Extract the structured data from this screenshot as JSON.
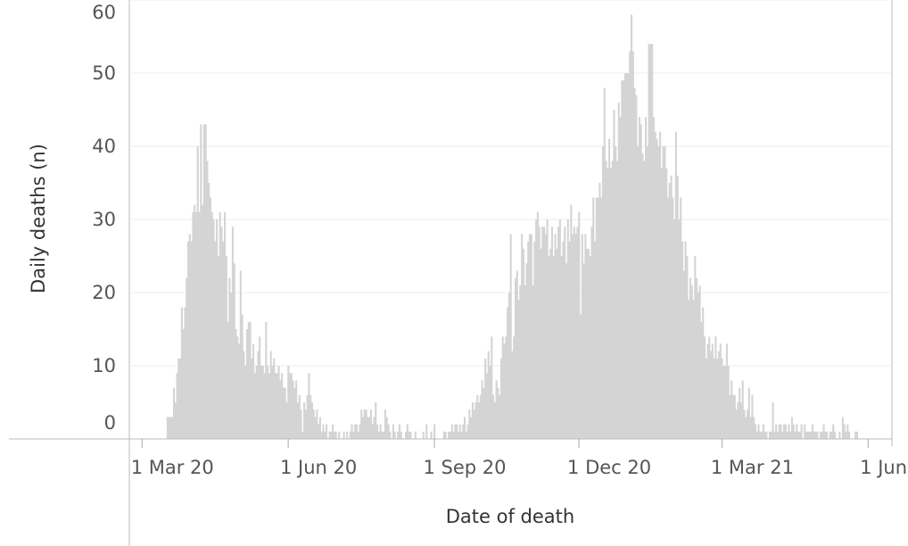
{
  "chart_data": {
    "type": "bar",
    "y_label": "Daily deaths (n)",
    "x_label": "Date of death",
    "color": "#d4d4d4",
    "grid": true,
    "ylim": [
      0,
      60
    ],
    "yticks": [
      0,
      10,
      20,
      30,
      40,
      50,
      60
    ],
    "xlim": [
      "2020-02-22",
      "2021-06-16"
    ],
    "xticks": [
      {
        "value": "2020-03-01",
        "label": "1 Mar 20"
      },
      {
        "value": "2020-06-01",
        "label": "1 Jun 20"
      },
      {
        "value": "2020-09-01",
        "label": "1 Sep 20"
      },
      {
        "value": "2020-12-01",
        "label": "1 Dec 20"
      },
      {
        "value": "2021-03-01",
        "label": "1 Mar 21"
      },
      {
        "value": "2021-06-01",
        "label": "1 Jun 21"
      }
    ],
    "x": [
      "2020-03-17",
      "2020-03-18",
      "2020-03-19",
      "2020-03-20",
      "2020-03-21",
      "2020-03-22",
      "2020-03-23",
      "2020-03-24",
      "2020-03-25",
      "2020-03-26",
      "2020-03-27",
      "2020-03-28",
      "2020-03-29",
      "2020-03-30",
      "2020-03-31",
      "2020-04-01",
      "2020-04-02",
      "2020-04-03",
      "2020-04-04",
      "2020-04-05",
      "2020-04-06",
      "2020-04-07",
      "2020-04-08",
      "2020-04-09",
      "2020-04-10",
      "2020-04-11",
      "2020-04-12",
      "2020-04-13",
      "2020-04-14",
      "2020-04-15",
      "2020-04-16",
      "2020-04-17",
      "2020-04-18",
      "2020-04-19",
      "2020-04-20",
      "2020-04-21",
      "2020-04-22",
      "2020-04-23",
      "2020-04-24",
      "2020-04-25",
      "2020-04-26",
      "2020-04-27",
      "2020-04-28",
      "2020-04-29",
      "2020-04-30",
      "2020-05-01",
      "2020-05-02",
      "2020-05-03",
      "2020-05-04",
      "2020-05-05",
      "2020-05-06",
      "2020-05-07",
      "2020-05-08",
      "2020-05-09",
      "2020-05-10",
      "2020-05-11",
      "2020-05-12",
      "2020-05-13",
      "2020-05-14",
      "2020-05-15",
      "2020-05-16",
      "2020-05-17",
      "2020-05-18",
      "2020-05-19",
      "2020-05-20",
      "2020-05-21",
      "2020-05-22",
      "2020-05-23",
      "2020-05-24",
      "2020-05-25",
      "2020-05-26",
      "2020-05-27",
      "2020-05-28",
      "2020-05-29",
      "2020-05-30",
      "2020-05-31",
      "2020-06-01",
      "2020-06-02",
      "2020-06-03",
      "2020-06-04",
      "2020-06-05",
      "2020-06-06",
      "2020-06-07",
      "2020-06-08",
      "2020-06-09",
      "2020-06-10",
      "2020-06-11",
      "2020-06-12",
      "2020-06-13",
      "2020-06-14",
      "2020-06-15",
      "2020-06-16",
      "2020-06-17",
      "2020-06-18",
      "2020-06-19",
      "2020-06-20",
      "2020-06-21",
      "2020-06-22",
      "2020-06-23",
      "2020-06-24",
      "2020-06-25",
      "2020-06-26",
      "2020-06-27",
      "2020-06-28",
      "2020-06-29",
      "2020-06-30",
      "2020-07-01",
      "2020-07-02",
      "2020-07-03",
      "2020-07-04",
      "2020-07-05",
      "2020-07-06",
      "2020-07-07",
      "2020-07-08",
      "2020-07-09",
      "2020-07-10",
      "2020-07-11",
      "2020-07-12",
      "2020-07-13",
      "2020-07-14",
      "2020-07-15",
      "2020-07-16",
      "2020-07-17",
      "2020-07-18",
      "2020-07-19",
      "2020-07-20",
      "2020-07-21",
      "2020-07-22",
      "2020-07-23",
      "2020-07-24",
      "2020-07-25",
      "2020-07-26",
      "2020-07-27",
      "2020-07-28",
      "2020-07-29",
      "2020-07-30",
      "2020-07-31",
      "2020-08-01",
      "2020-08-02",
      "2020-08-03",
      "2020-08-04",
      "2020-08-05",
      "2020-08-06",
      "2020-08-07",
      "2020-08-08",
      "2020-08-09",
      "2020-08-10",
      "2020-08-11",
      "2020-08-12",
      "2020-08-13",
      "2020-08-14",
      "2020-08-15",
      "2020-08-16",
      "2020-08-17",
      "2020-08-18",
      "2020-08-19",
      "2020-08-20",
      "2020-08-21",
      "2020-08-22",
      "2020-08-23",
      "2020-08-24",
      "2020-08-25",
      "2020-08-26",
      "2020-08-27",
      "2020-08-28",
      "2020-08-29",
      "2020-08-30",
      "2020-08-31",
      "2020-09-01",
      "2020-09-02",
      "2020-09-03",
      "2020-09-04",
      "2020-09-05",
      "2020-09-06",
      "2020-09-07",
      "2020-09-08",
      "2020-09-09",
      "2020-09-10",
      "2020-09-11",
      "2020-09-12",
      "2020-09-13",
      "2020-09-14",
      "2020-09-15",
      "2020-09-16",
      "2020-09-17",
      "2020-09-18",
      "2020-09-19",
      "2020-09-20",
      "2020-09-21",
      "2020-09-22",
      "2020-09-23",
      "2020-09-24",
      "2020-09-25",
      "2020-09-26",
      "2020-09-27",
      "2020-09-28",
      "2020-09-29",
      "2020-09-30",
      "2020-10-01",
      "2020-10-02",
      "2020-10-03",
      "2020-10-04",
      "2020-10-05",
      "2020-10-06",
      "2020-10-07",
      "2020-10-08",
      "2020-10-09",
      "2020-10-10",
      "2020-10-11",
      "2020-10-12",
      "2020-10-13",
      "2020-10-14",
      "2020-10-15",
      "2020-10-16",
      "2020-10-17",
      "2020-10-18",
      "2020-10-19",
      "2020-10-20",
      "2020-10-21",
      "2020-10-22",
      "2020-10-23",
      "2020-10-24",
      "2020-10-25",
      "2020-10-26",
      "2020-10-27",
      "2020-10-28",
      "2020-10-29",
      "2020-10-30",
      "2020-10-31",
      "2020-11-01",
      "2020-11-02",
      "2020-11-03",
      "2020-11-04",
      "2020-11-05",
      "2020-11-06",
      "2020-11-07",
      "2020-11-08",
      "2020-11-09",
      "2020-11-10",
      "2020-11-11",
      "2020-11-12",
      "2020-11-13",
      "2020-11-14",
      "2020-11-15",
      "2020-11-16",
      "2020-11-17",
      "2020-11-18",
      "2020-11-19",
      "2020-11-20",
      "2020-11-21",
      "2020-11-22",
      "2020-11-23",
      "2020-11-24",
      "2020-11-25",
      "2020-11-26",
      "2020-11-27",
      "2020-11-28",
      "2020-11-29",
      "2020-11-30",
      "2020-12-01",
      "2020-12-02",
      "2020-12-03",
      "2020-12-04",
      "2020-12-05",
      "2020-12-06",
      "2020-12-07",
      "2020-12-08",
      "2020-12-09",
      "2020-12-10",
      "2020-12-11",
      "2020-12-12",
      "2020-12-13",
      "2020-12-14",
      "2020-12-15",
      "2020-12-16",
      "2020-12-17",
      "2020-12-18",
      "2020-12-19",
      "2020-12-20",
      "2020-12-21",
      "2020-12-22",
      "2020-12-23",
      "2020-12-24",
      "2020-12-25",
      "2020-12-26",
      "2020-12-27",
      "2020-12-28",
      "2020-12-29",
      "2020-12-30",
      "2020-12-31",
      "2021-01-01",
      "2021-01-02",
      "2021-01-03",
      "2021-01-04",
      "2021-01-05",
      "2021-01-06",
      "2021-01-07",
      "2021-01-08",
      "2021-01-09",
      "2021-01-10",
      "2021-01-11",
      "2021-01-12",
      "2021-01-13",
      "2021-01-14",
      "2021-01-15",
      "2021-01-16",
      "2021-01-17",
      "2021-01-18",
      "2021-01-19",
      "2021-01-20",
      "2021-01-21",
      "2021-01-22",
      "2021-01-23",
      "2021-01-24",
      "2021-01-25",
      "2021-01-26",
      "2021-01-27",
      "2021-01-28",
      "2021-01-29",
      "2021-01-30",
      "2021-01-31",
      "2021-02-01",
      "2021-02-02",
      "2021-02-03",
      "2021-02-04",
      "2021-02-05",
      "2021-02-06",
      "2021-02-07",
      "2021-02-08",
      "2021-02-09",
      "2021-02-10",
      "2021-02-11",
      "2021-02-12",
      "2021-02-13",
      "2021-02-14",
      "2021-02-15",
      "2021-02-16",
      "2021-02-17",
      "2021-02-18",
      "2021-02-19",
      "2021-02-20",
      "2021-02-21",
      "2021-02-22",
      "2021-02-23",
      "2021-02-24",
      "2021-02-25",
      "2021-02-26",
      "2021-02-27",
      "2021-02-28",
      "2021-03-01",
      "2021-03-02",
      "2021-03-03",
      "2021-03-04",
      "2021-03-05",
      "2021-03-06",
      "2021-03-07",
      "2021-03-08",
      "2021-03-09",
      "2021-03-10",
      "2021-03-11",
      "2021-03-12",
      "2021-03-13",
      "2021-03-14",
      "2021-03-15",
      "2021-03-16",
      "2021-03-17",
      "2021-03-18",
      "2021-03-19",
      "2021-03-20",
      "2021-03-21",
      "2021-03-22",
      "2021-03-23",
      "2021-03-24",
      "2021-03-25",
      "2021-03-26",
      "2021-03-27",
      "2021-03-28",
      "2021-03-29",
      "2021-03-30",
      "2021-03-31",
      "2021-04-01",
      "2021-04-02",
      "2021-04-03",
      "2021-04-04",
      "2021-04-05",
      "2021-04-06",
      "2021-04-07",
      "2021-04-08",
      "2021-04-09",
      "2021-04-10",
      "2021-04-11",
      "2021-04-12",
      "2021-04-13",
      "2021-04-14",
      "2021-04-15",
      "2021-04-16",
      "2021-04-17",
      "2021-04-18",
      "2021-04-19",
      "2021-04-20",
      "2021-04-21",
      "2021-04-22",
      "2021-04-23",
      "2021-04-24",
      "2021-04-25",
      "2021-04-26",
      "2021-04-27",
      "2021-04-28",
      "2021-04-29",
      "2021-04-30",
      "2021-05-01",
      "2021-05-02",
      "2021-05-03",
      "2021-05-04",
      "2021-05-05",
      "2021-05-06",
      "2021-05-07",
      "2021-05-08",
      "2021-05-09",
      "2021-05-10",
      "2021-05-11",
      "2021-05-12",
      "2021-05-13",
      "2021-05-14",
      "2021-05-15",
      "2021-05-16",
      "2021-05-17",
      "2021-05-18",
      "2021-05-19",
      "2021-05-20",
      "2021-05-21",
      "2021-05-22",
      "2021-05-23",
      "2021-05-24",
      "2021-05-25"
    ],
    "values": [
      3,
      3,
      3,
      3,
      7,
      5,
      9,
      11,
      11,
      18,
      15,
      18,
      22,
      27,
      28,
      27,
      31,
      32,
      31,
      40,
      31,
      43,
      32,
      43,
      43,
      38,
      35,
      33,
      31,
      30,
      27,
      30,
      25,
      31,
      29,
      27,
      31,
      25,
      16,
      22,
      20,
      29,
      24,
      15,
      14,
      13,
      23,
      17,
      12,
      10,
      15,
      16,
      16,
      11,
      13,
      9,
      10,
      12,
      14,
      10,
      10,
      9,
      16,
      10,
      9,
      12,
      10,
      11,
      9,
      9,
      10,
      8,
      9,
      7,
      7,
      5,
      10,
      9,
      9,
      8,
      7,
      8,
      5,
      6,
      4,
      1,
      5,
      4,
      6,
      9,
      6,
      5,
      4,
      3,
      4,
      2,
      3,
      1,
      2,
      1,
      2,
      0,
      1,
      1,
      2,
      1,
      1,
      0,
      1,
      0,
      0,
      1,
      0,
      1,
      0,
      1,
      2,
      1,
      2,
      2,
      1,
      2,
      4,
      3,
      4,
      4,
      3,
      3,
      4,
      2,
      3,
      5,
      2,
      1,
      2,
      1,
      1,
      4,
      3,
      2,
      1,
      0,
      2,
      1,
      0,
      1,
      2,
      1,
      0,
      0,
      1,
      2,
      1,
      1,
      0,
      0,
      1,
      0,
      0,
      0,
      0,
      1,
      0,
      2,
      0,
      0,
      1,
      0,
      2,
      0,
      0,
      0,
      0,
      0,
      1,
      1,
      0,
      1,
      1,
      2,
      1,
      2,
      2,
      1,
      2,
      1,
      2,
      3,
      1,
      2,
      4,
      3,
      5,
      4,
      5,
      6,
      5,
      6,
      8,
      7,
      11,
      9,
      12,
      10,
      14,
      6,
      5,
      8,
      7,
      6,
      11,
      14,
      13,
      14,
      18,
      20,
      28,
      12,
      14,
      22,
      23,
      19,
      21,
      28,
      26,
      21,
      24,
      27,
      28,
      28,
      21,
      27,
      30,
      31,
      29,
      26,
      29,
      29,
      28,
      30,
      25,
      26,
      29,
      25,
      28,
      26,
      29,
      30,
      25,
      27,
      29,
      24,
      30,
      27,
      32,
      28,
      29,
      28,
      29,
      31,
      17,
      28,
      24,
      28,
      26,
      26,
      25,
      29,
      33,
      27,
      33,
      33,
      35,
      33,
      40,
      48,
      38,
      37,
      41,
      37,
      38,
      45,
      40,
      38,
      46,
      44,
      49,
      49,
      50,
      50,
      50,
      53,
      58,
      53,
      48,
      47,
      40,
      44,
      43,
      39,
      38,
      44,
      40,
      54,
      54,
      54,
      44,
      42,
      41,
      40,
      42,
      37,
      40,
      40,
      37,
      33,
      35,
      36,
      33,
      30,
      42,
      36,
      30,
      33,
      27,
      23,
      27,
      25,
      19,
      22,
      21,
      19,
      25,
      22,
      20,
      21,
      16,
      18,
      14,
      11,
      13,
      14,
      12,
      13,
      11,
      14,
      11,
      12,
      13,
      11,
      10,
      10,
      13,
      10,
      6,
      8,
      6,
      6,
      4,
      5,
      7,
      5,
      8,
      4,
      3,
      4,
      7,
      3,
      6,
      3,
      2,
      1,
      2,
      1,
      1,
      2,
      1,
      1,
      0,
      1,
      1,
      5,
      1,
      2,
      1,
      2,
      2,
      1,
      2,
      2,
      1,
      2,
      1,
      3,
      2,
      1,
      2,
      1,
      1,
      2,
      0,
      2,
      1,
      1,
      1,
      1,
      2,
      1,
      1,
      1,
      0,
      1,
      1,
      2,
      1,
      1,
      0,
      1,
      1,
      2,
      1,
      0,
      0,
      1,
      0,
      3,
      2,
      1,
      2,
      1,
      0,
      0,
      0,
      1,
      1
    ]
  }
}
